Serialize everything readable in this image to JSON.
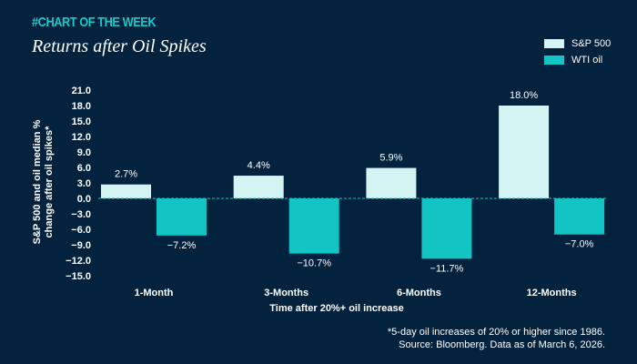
{
  "header": {
    "kicker": "#CHART OF THE WEEK",
    "title": "Returns after Oil Spikes"
  },
  "footnote": {
    "line1": "*5-day oil increases of 20% or higher since 1986.",
    "line2": "Source: Bloomberg. Data as of March 6, 2026."
  },
  "colors": {
    "background": "#03223d",
    "sp500": "#d4f4f4",
    "oil": "#12c4c4",
    "kicker": "#18c9c9"
  },
  "chart_data": {
    "type": "bar",
    "title": "Returns after Oil Spikes",
    "xlabel": "Time after 20%+ oil increase",
    "ylabel": "S&P 500 and oil median % change after oil spikes*",
    "ylabel_lines": [
      "S&P 500 and oil median %",
      "change after oil spikes*"
    ],
    "ylim": [
      -15,
      21
    ],
    "yticks": [
      "21.0",
      "18.0",
      "15.0",
      "12.0",
      "9.0",
      "6.0",
      "3.0",
      "0.0",
      "−3.0",
      "−6.0",
      "−9.0",
      "−12.0",
      "−15.0"
    ],
    "ytick_values": [
      21,
      18,
      15,
      12,
      9,
      6,
      3,
      0,
      -3,
      -6,
      -9,
      -12,
      -15
    ],
    "categories": [
      "1-Month",
      "3-Months",
      "6-Months",
      "12-Months"
    ],
    "legend_position": "top-right",
    "grid": false,
    "series": [
      {
        "name": "S&P 500",
        "values": [
          2.7,
          4.4,
          5.9,
          18.0
        ],
        "labels": [
          "2.7%",
          "4.4%",
          "5.9%",
          "18.0%"
        ]
      },
      {
        "name": "WTI oil",
        "values": [
          -7.2,
          -10.7,
          -11.7,
          -7.0
        ],
        "labels": [
          "−7.2%",
          "−10.7%",
          "−11.7%",
          "−7.0%"
        ]
      }
    ]
  }
}
